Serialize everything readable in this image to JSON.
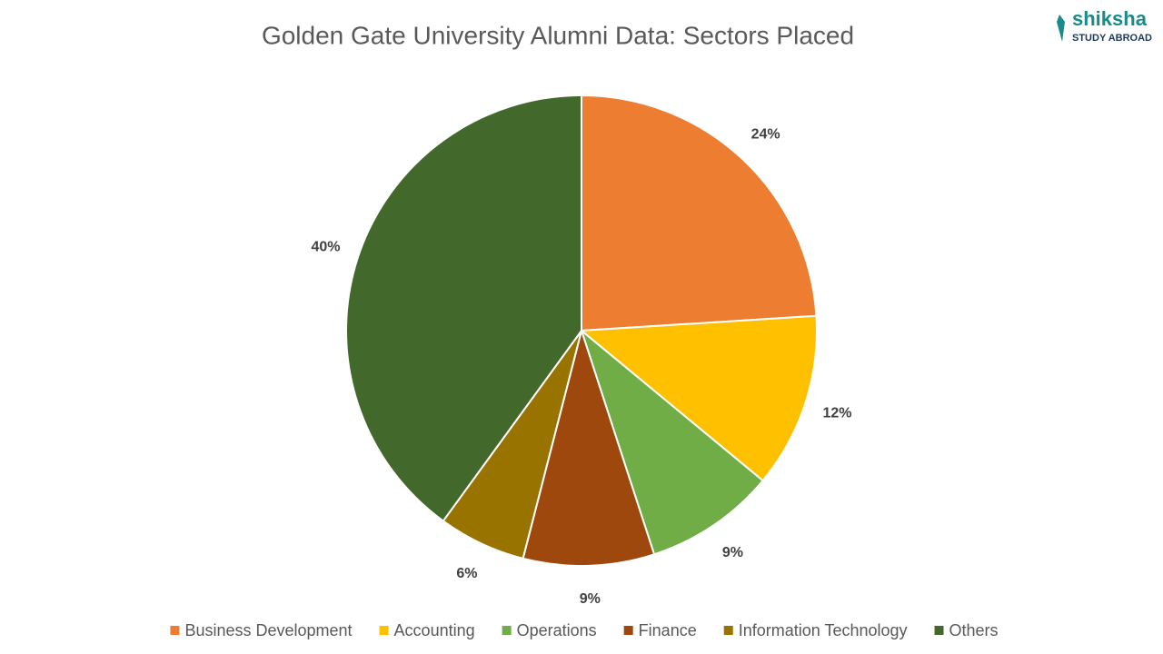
{
  "chart_data": {
    "type": "pie",
    "title": "Golden Gate University Alumni Data: Sectors Placed",
    "categories": [
      "Business Development",
      "Accounting",
      "Operations",
      "Finance",
      "Information Technology",
      "Others"
    ],
    "values": [
      24,
      12,
      9,
      9,
      6,
      40
    ],
    "value_labels": [
      "24%",
      "12%",
      "9%",
      "9%",
      "6%",
      "40%"
    ],
    "colors": [
      "#ED7D31",
      "#FFC000",
      "#70AD47",
      "#9E480E",
      "#997300",
      "#43682B"
    ],
    "legend": "bottom"
  },
  "logo": {
    "name": "shiksha",
    "tagline": "STUDY ABROAD"
  }
}
